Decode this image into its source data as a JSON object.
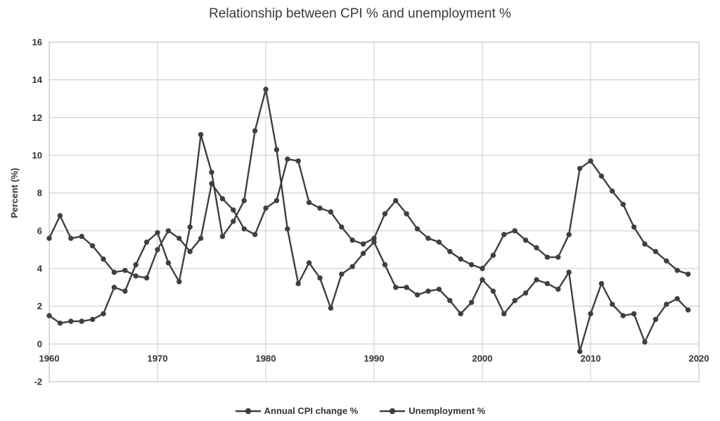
{
  "title": "Relationship between CPI % and unemployment %",
  "y_axis": {
    "label": "Percent (%)",
    "ticks": [
      16,
      14,
      12,
      10,
      8,
      6,
      4,
      2,
      0,
      -2
    ]
  },
  "x_axis": {
    "ticks": [
      1960,
      1970,
      1980,
      1990,
      2000,
      2010,
      2020
    ]
  },
  "colors": {
    "series": "#3f3f3f",
    "grid": "#c8c8c8",
    "border": "#b4b4b4",
    "tick_text": "#333333",
    "title_text": "#3a3a3a",
    "background": "#ffffff"
  },
  "chart_data": {
    "type": "line",
    "title": "Relationship between CPI % and unemployment %",
    "xlabel": "",
    "ylabel": "Percent (%)",
    "xlim": [
      1960,
      2020
    ],
    "ylim": [
      -2,
      16
    ],
    "ytick_step": 2,
    "grid": true,
    "legend_position": "bottom",
    "marker": "circle",
    "x": [
      1960,
      1961,
      1962,
      1963,
      1964,
      1965,
      1966,
      1967,
      1968,
      1969,
      1970,
      1971,
      1972,
      1973,
      1974,
      1975,
      1976,
      1977,
      1978,
      1979,
      1980,
      1981,
      1982,
      1983,
      1984,
      1985,
      1986,
      1987,
      1988,
      1989,
      1990,
      1991,
      1992,
      1993,
      1994,
      1995,
      1996,
      1997,
      1998,
      1999,
      2000,
      2001,
      2002,
      2003,
      2004,
      2005,
      2006,
      2007,
      2008,
      2009,
      2010,
      2011,
      2012,
      2013,
      2014,
      2015,
      2016,
      2017,
      2018,
      2019
    ],
    "series": [
      {
        "name": "Annual CPI change %",
        "values": [
          1.5,
          1.1,
          1.2,
          1.2,
          1.3,
          1.6,
          3.0,
          2.8,
          4.2,
          5.4,
          5.9,
          4.3,
          3.3,
          6.2,
          11.1,
          9.1,
          5.7,
          6.5,
          7.6,
          11.3,
          13.5,
          10.3,
          6.1,
          3.2,
          4.3,
          3.5,
          1.9,
          3.7,
          4.1,
          4.8,
          5.4,
          4.2,
          3.0,
          3.0,
          2.6,
          2.8,
          2.9,
          2.3,
          1.6,
          2.2,
          3.4,
          2.8,
          1.6,
          2.3,
          2.7,
          3.4,
          3.2,
          2.9,
          3.8,
          -0.4,
          1.6,
          3.2,
          2.1,
          1.5,
          1.6,
          0.1,
          1.3,
          2.1,
          2.4,
          1.8
        ]
      },
      {
        "name": "Unemployment %",
        "values": [
          5.6,
          6.8,
          5.6,
          5.7,
          5.2,
          4.5,
          3.8,
          3.9,
          3.6,
          3.5,
          5.0,
          6.0,
          5.6,
          4.9,
          5.6,
          8.5,
          7.7,
          7.1,
          6.1,
          5.8,
          7.2,
          7.6,
          9.8,
          9.7,
          7.5,
          7.2,
          7.0,
          6.2,
          5.5,
          5.3,
          5.6,
          6.9,
          7.6,
          6.9,
          6.1,
          5.6,
          5.4,
          4.9,
          4.5,
          4.2,
          4.0,
          4.7,
          5.8,
          6.0,
          5.5,
          5.1,
          4.6,
          4.6,
          5.8,
          9.3,
          9.7,
          8.9,
          8.1,
          7.4,
          6.2,
          5.3,
          4.9,
          4.4,
          3.9,
          3.7
        ]
      }
    ]
  }
}
